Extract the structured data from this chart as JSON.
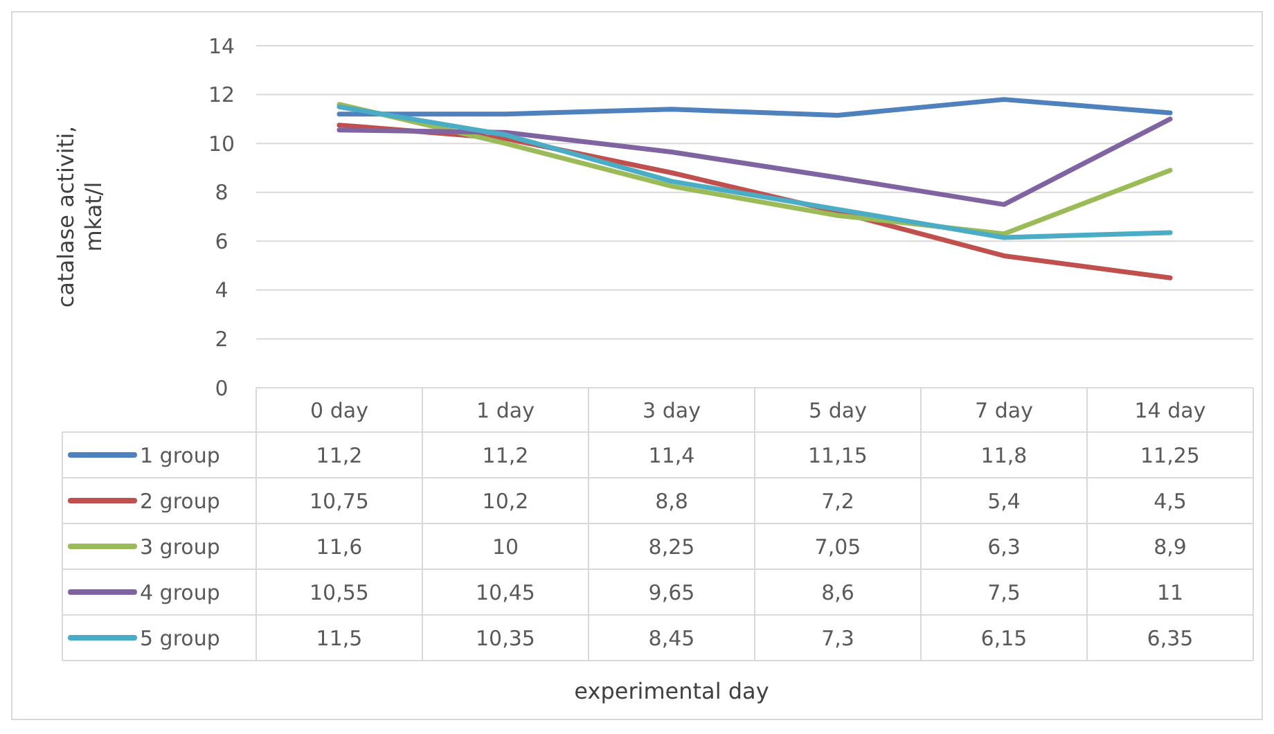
{
  "chart_data": {
    "type": "line",
    "ylabel": "catalase activiti, mkat/l",
    "annotations": [
      "experimental day"
    ],
    "categories": [
      "0 day",
      "1 day",
      "3 day",
      "5 day",
      "7 day",
      "14 day"
    ],
    "ylim": [
      0,
      14
    ],
    "yticks": [
      0,
      2,
      4,
      6,
      8,
      10,
      12,
      14
    ],
    "grid": "y",
    "legend": "bottom",
    "marker": "none",
    "line_style": "solid",
    "series": [
      {
        "name": "1 group",
        "color": "#4f81bd",
        "values": [
          11.2,
          11.2,
          11.4,
          11.15,
          11.8,
          11.25
        ],
        "value_labels": [
          "11,2",
          "11,2",
          "11,4",
          "11,15",
          "11,8",
          "11,25"
        ]
      },
      {
        "name": "2 group",
        "color": "#c0504d",
        "values": [
          10.75,
          10.2,
          8.8,
          7.2,
          5.4,
          4.5
        ],
        "value_labels": [
          "10,75",
          "10,2",
          "8,8",
          "7,2",
          "5,4",
          "4,5"
        ]
      },
      {
        "name": "3 group",
        "color": "#9bbb59",
        "values": [
          11.6,
          10,
          8.25,
          7.05,
          6.3,
          8.9
        ],
        "value_labels": [
          "11,6",
          "10",
          "8,25",
          "7,05",
          "6,3",
          "8,9"
        ]
      },
      {
        "name": "4 group",
        "color": "#8064a2",
        "values": [
          10.55,
          10.45,
          9.65,
          8.6,
          7.5,
          11
        ],
        "value_labels": [
          "10,55",
          "10,45",
          "9,65",
          "8,6",
          "7,5",
          "11"
        ]
      },
      {
        "name": "5 group",
        "color": "#4bacc6",
        "values": [
          11.5,
          10.35,
          8.45,
          7.3,
          6.15,
          6.35
        ],
        "value_labels": [
          "11,5",
          "10,35",
          "8,45",
          "7,3",
          "6,15",
          "6,35"
        ]
      }
    ]
  }
}
